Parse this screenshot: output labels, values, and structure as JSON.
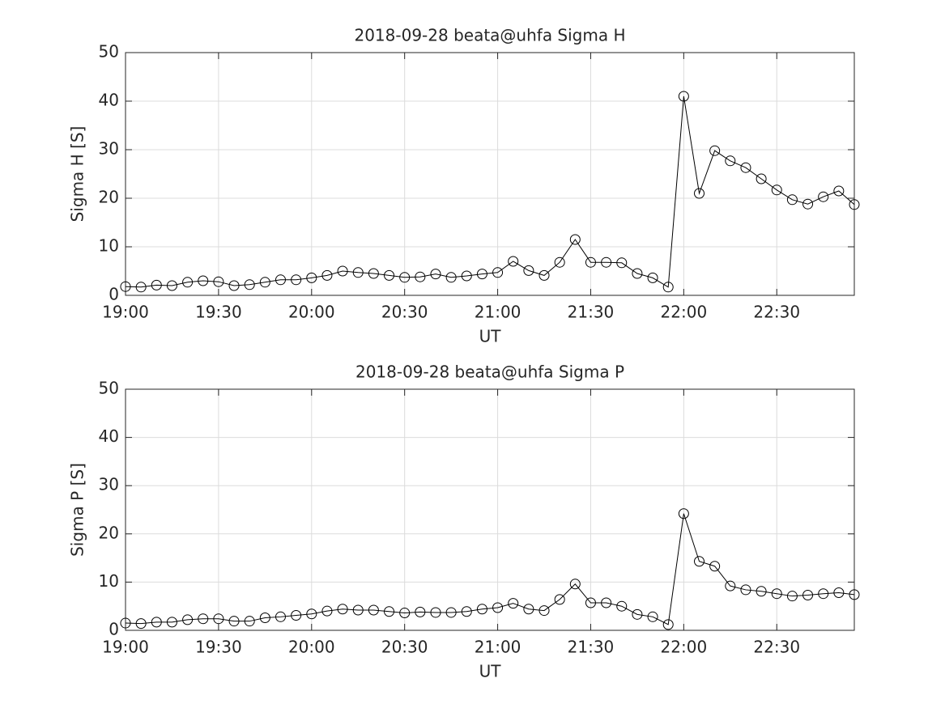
{
  "chart_data": [
    {
      "type": "line",
      "title": "2018-09-28  beata@uhfa Sigma H",
      "xlabel": "UT",
      "ylabel": "Sigma H [S]",
      "grid": true,
      "marker": "circle",
      "x": [
        "19:00",
        "19:05",
        "19:10",
        "19:15",
        "19:20",
        "19:25",
        "19:30",
        "19:35",
        "19:40",
        "19:45",
        "19:50",
        "19:55",
        "20:00",
        "20:05",
        "20:10",
        "20:15",
        "20:20",
        "20:25",
        "20:30",
        "20:35",
        "20:40",
        "20:45",
        "20:50",
        "20:55",
        "21:00",
        "21:05",
        "21:10",
        "21:15",
        "21:20",
        "21:25",
        "21:30",
        "21:35",
        "21:40",
        "21:45",
        "21:50",
        "21:55",
        "22:00",
        "22:05",
        "22:10",
        "22:15",
        "22:20",
        "22:25",
        "22:30",
        "22:35",
        "22:40",
        "22:45",
        "22:50",
        "22:55"
      ],
      "series": [
        {
          "name": "Sigma H",
          "color": "#000000",
          "values": [
            1.8,
            1.7,
            2.1,
            2.0,
            2.7,
            3.0,
            2.8,
            2.0,
            2.2,
            2.7,
            3.2,
            3.2,
            3.6,
            4.1,
            5.0,
            4.7,
            4.5,
            4.1,
            3.7,
            3.8,
            4.4,
            3.7,
            4.0,
            4.4,
            4.7,
            7.0,
            5.1,
            4.1,
            6.8,
            11.5,
            6.8,
            6.8,
            6.7,
            4.5,
            3.6,
            1.7,
            41,
            21,
            29.8,
            27.7,
            26.3,
            24,
            21.7,
            19.7,
            18.8,
            20.3,
            21.5,
            18.7
          ]
        }
      ],
      "xlim": [
        "19:00",
        "22:55"
      ],
      "xticks": [
        "19:00",
        "19:30",
        "20:00",
        "20:30",
        "21:00",
        "21:30",
        "22:00",
        "22:30"
      ],
      "ylim": [
        0,
        50
      ],
      "yticks": [
        0,
        10,
        20,
        30,
        40,
        50
      ]
    },
    {
      "type": "line",
      "title": "2018-09-28  beata@uhfa Sigma P",
      "xlabel": "UT",
      "ylabel": "Sigma P [S]",
      "grid": true,
      "marker": "circle",
      "x": [
        "19:00",
        "19:05",
        "19:10",
        "19:15",
        "19:20",
        "19:25",
        "19:30",
        "19:35",
        "19:40",
        "19:45",
        "19:50",
        "19:55",
        "20:00",
        "20:05",
        "20:10",
        "20:15",
        "20:20",
        "20:25",
        "20:30",
        "20:35",
        "20:40",
        "20:45",
        "20:50",
        "20:55",
        "21:00",
        "21:05",
        "21:10",
        "21:15",
        "21:20",
        "21:25",
        "21:30",
        "21:35",
        "21:40",
        "21:45",
        "21:50",
        "21:55",
        "22:00",
        "22:05",
        "22:10",
        "22:15",
        "22:20",
        "22:25",
        "22:30",
        "22:35",
        "22:40",
        "22:45",
        "22:50",
        "22:55"
      ],
      "series": [
        {
          "name": "Sigma P",
          "color": "#000000",
          "values": [
            1.5,
            1.4,
            1.7,
            1.7,
            2.2,
            2.4,
            2.4,
            1.9,
            1.9,
            2.6,
            2.8,
            3.1,
            3.4,
            4.0,
            4.4,
            4.2,
            4.2,
            3.9,
            3.6,
            3.8,
            3.7,
            3.7,
            3.9,
            4.4,
            4.7,
            5.6,
            4.4,
            4.1,
            6.4,
            9.6,
            5.7,
            5.7,
            5.0,
            3.3,
            2.8,
            1.2,
            24.2,
            14.3,
            13.3,
            9.2,
            8.4,
            8.1,
            7.6,
            7.1,
            7.3,
            7.6,
            7.8,
            7.4
          ]
        }
      ],
      "xlim": [
        "19:00",
        "22:55"
      ],
      "xticks": [
        "19:00",
        "19:30",
        "20:00",
        "20:30",
        "21:00",
        "21:30",
        "22:00",
        "22:30"
      ],
      "ylim": [
        0,
        50
      ],
      "yticks": [
        0,
        10,
        20,
        30,
        40,
        50
      ]
    }
  ]
}
